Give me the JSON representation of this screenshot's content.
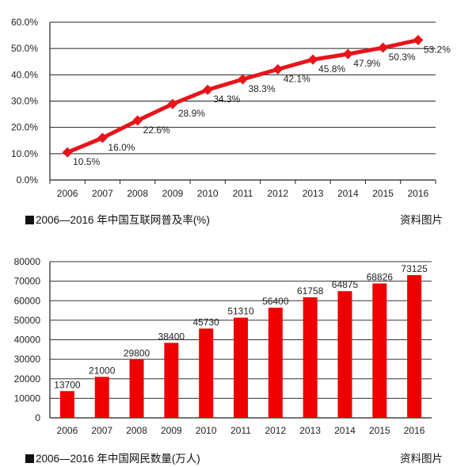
{
  "chart_data": [
    {
      "type": "line",
      "categories": [
        "2006",
        "2007",
        "2008",
        "2009",
        "2010",
        "2011",
        "2012",
        "2013",
        "2014",
        "2015",
        "2016"
      ],
      "series": [
        {
          "values": [
            10.5,
            16.0,
            22.6,
            28.9,
            34.3,
            38.3,
            42.1,
            45.8,
            47.9,
            50.3,
            53.2
          ]
        }
      ],
      "data_labels": [
        "10.5%",
        "16.0%",
        "22.6%",
        "28.9%",
        "34.3%",
        "38.3%",
        "42.1%",
        "45.8%",
        "47.9%",
        "50.3%",
        "53.2%"
      ],
      "y_ticks": [
        "0.0%",
        "10.0%",
        "20.0%",
        "30.0%",
        "40.0%",
        "50.0%",
        "60.0%"
      ],
      "ylim": [
        0,
        60
      ],
      "grid": true,
      "color": "#e8141b",
      "caption": "2006—2016 年中国互联网普及率(%)",
      "source": "资料图片"
    },
    {
      "type": "bar",
      "categories": [
        "2006",
        "2007",
        "2008",
        "2009",
        "2010",
        "2011",
        "2012",
        "2013",
        "2014",
        "2015",
        "2016"
      ],
      "series": [
        {
          "values": [
            13700,
            21000,
            29800,
            38400,
            45730,
            51310,
            56400,
            61758,
            64875,
            68826,
            73125
          ]
        }
      ],
      "data_labels": [
        "13700",
        "21000",
        "29800",
        "38400",
        "45730",
        "51310",
        "56400",
        "61758",
        "64875",
        "68826",
        "73125"
      ],
      "y_ticks": [
        "0",
        "10000",
        "20000",
        "30000",
        "40000",
        "50000",
        "60000",
        "70000",
        "80000"
      ],
      "ylim": [
        0,
        80000
      ],
      "grid": true,
      "color": "#ee0000",
      "caption": "2006—2016 年中国网民数量(万人)",
      "source": "资料图片"
    }
  ]
}
